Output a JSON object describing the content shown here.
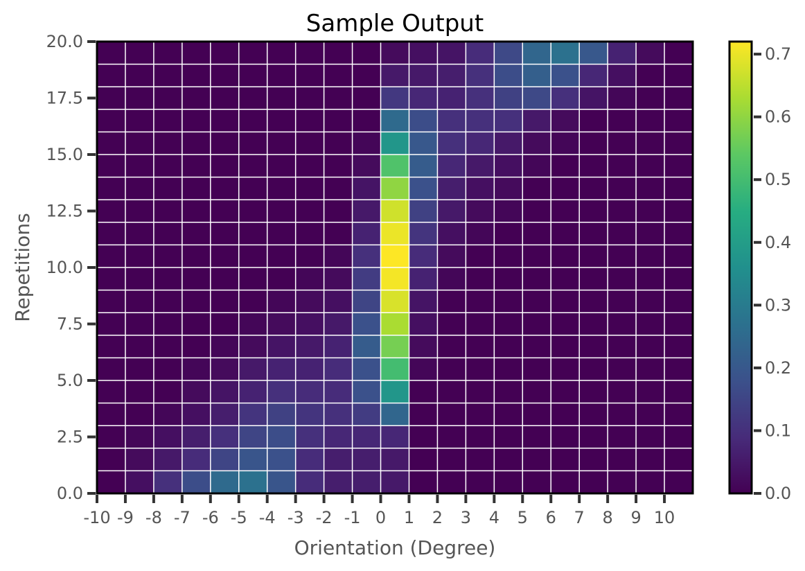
{
  "chart_data": {
    "type": "heatmap",
    "title": "Sample Output",
    "xlabel": "Orientation (Degree)",
    "ylabel": "Repetitions",
    "x_tick_labels": [
      "-10",
      "-9",
      "-8",
      "-7",
      "-6",
      "-5",
      "-4",
      "-3",
      "-2",
      "-1",
      "0",
      "1",
      "2",
      "3",
      "4",
      "5",
      "6",
      "7",
      "8",
      "9",
      "10"
    ],
    "y_tick_labels": [
      "0.0",
      "2.5",
      "5.0",
      "7.5",
      "10.0",
      "12.5",
      "15.0",
      "17.5",
      "20.0"
    ],
    "y_tick_values": [
      0,
      2.5,
      5,
      7.5,
      10,
      12.5,
      15,
      17.5,
      20
    ],
    "xlim": [
      -10,
      11
    ],
    "ylim": [
      0,
      20
    ],
    "colormap": "viridis",
    "color_range": [
      0,
      0.72
    ],
    "colorbar_tick_labels": [
      "0.0",
      "0.1",
      "0.2",
      "0.3",
      "0.4",
      "0.5",
      "0.6",
      "0.7"
    ],
    "colorbar_tick_values": [
      0,
      0.1,
      0.2,
      0.3,
      0.4,
      0.5,
      0.6,
      0.7
    ],
    "grid": true,
    "x_cells": [
      -10,
      -9,
      -8,
      -7,
      -6,
      -5,
      -4,
      -3,
      -2,
      -1,
      0,
      1,
      2,
      3,
      4,
      5,
      6,
      7,
      8,
      9,
      10
    ],
    "row_note": "rows ordered bottom (y 0-1) to top (y 19-20)",
    "values": [
      [
        0.0,
        0.03,
        0.1,
        0.17,
        0.25,
        0.27,
        0.19,
        0.09,
        0.06,
        0.06,
        0.05,
        0.0,
        0.0,
        0.0,
        0.0,
        0.0,
        0.0,
        0.0,
        0.0,
        0.0,
        0.0
      ],
      [
        0.0,
        0.02,
        0.05,
        0.09,
        0.15,
        0.19,
        0.18,
        0.09,
        0.06,
        0.06,
        0.05,
        0.0,
        0.0,
        0.0,
        0.0,
        0.0,
        0.0,
        0.0,
        0.0,
        0.0,
        0.0
      ],
      [
        0.0,
        0.01,
        0.03,
        0.06,
        0.1,
        0.15,
        0.17,
        0.1,
        0.08,
        0.08,
        0.08,
        0.0,
        0.0,
        0.0,
        0.0,
        0.0,
        0.0,
        0.0,
        0.0,
        0.0,
        0.0
      ],
      [
        0.0,
        0.0,
        0.01,
        0.03,
        0.06,
        0.11,
        0.14,
        0.11,
        0.1,
        0.13,
        0.24,
        0.0,
        0.0,
        0.0,
        0.0,
        0.0,
        0.0,
        0.0,
        0.0,
        0.0,
        0.0
      ],
      [
        0.0,
        0.0,
        0.0,
        0.02,
        0.04,
        0.07,
        0.1,
        0.09,
        0.09,
        0.18,
        0.38,
        0.0,
        0.0,
        0.0,
        0.0,
        0.0,
        0.0,
        0.0,
        0.0,
        0.0,
        0.0
      ],
      [
        0.0,
        0.0,
        0.0,
        0.01,
        0.02,
        0.05,
        0.07,
        0.07,
        0.09,
        0.18,
        0.5,
        0.01,
        0.0,
        0.0,
        0.0,
        0.0,
        0.0,
        0.0,
        0.0,
        0.0,
        0.0
      ],
      [
        0.0,
        0.0,
        0.0,
        0.0,
        0.01,
        0.02,
        0.04,
        0.05,
        0.07,
        0.21,
        0.57,
        0.02,
        0.0,
        0.0,
        0.0,
        0.0,
        0.0,
        0.0,
        0.0,
        0.0,
        0.0
      ],
      [
        0.0,
        0.0,
        0.0,
        0.0,
        0.0,
        0.01,
        0.02,
        0.03,
        0.05,
        0.18,
        0.63,
        0.03,
        0.0,
        0.0,
        0.0,
        0.0,
        0.0,
        0.0,
        0.0,
        0.0,
        0.0
      ],
      [
        0.0,
        0.0,
        0.0,
        0.0,
        0.0,
        0.0,
        0.01,
        0.02,
        0.03,
        0.15,
        0.68,
        0.04,
        0.0,
        0.0,
        0.0,
        0.0,
        0.0,
        0.0,
        0.0,
        0.0,
        0.0
      ],
      [
        0.0,
        0.0,
        0.0,
        0.0,
        0.0,
        0.0,
        0.0,
        0.01,
        0.02,
        0.13,
        0.71,
        0.07,
        0.01,
        0.0,
        0.0,
        0.0,
        0.0,
        0.0,
        0.0,
        0.0,
        0.0
      ],
      [
        0.0,
        0.0,
        0.0,
        0.0,
        0.0,
        0.0,
        0.0,
        0.0,
        0.01,
        0.1,
        0.72,
        0.09,
        0.02,
        0.0,
        0.0,
        0.0,
        0.0,
        0.0,
        0.0,
        0.0,
        0.0
      ],
      [
        0.0,
        0.0,
        0.0,
        0.0,
        0.0,
        0.0,
        0.0,
        0.0,
        0.0,
        0.07,
        0.7,
        0.11,
        0.03,
        0.01,
        0.0,
        0.0,
        0.0,
        0.0,
        0.0,
        0.0,
        0.0
      ],
      [
        0.0,
        0.0,
        0.0,
        0.0,
        0.0,
        0.0,
        0.0,
        0.0,
        0.0,
        0.05,
        0.67,
        0.14,
        0.05,
        0.02,
        0.01,
        0.0,
        0.0,
        0.0,
        0.0,
        0.0,
        0.0
      ],
      [
        0.0,
        0.0,
        0.0,
        0.0,
        0.0,
        0.0,
        0.0,
        0.0,
        0.0,
        0.04,
        0.6,
        0.18,
        0.06,
        0.03,
        0.02,
        0.0,
        0.0,
        0.0,
        0.0,
        0.0,
        0.0
      ],
      [
        0.0,
        0.0,
        0.0,
        0.0,
        0.0,
        0.0,
        0.0,
        0.0,
        0.0,
        0.02,
        0.52,
        0.21,
        0.08,
        0.05,
        0.03,
        0.01,
        0.0,
        0.0,
        0.0,
        0.0,
        0.0
      ],
      [
        0.0,
        0.0,
        0.0,
        0.0,
        0.0,
        0.0,
        0.0,
        0.0,
        0.0,
        0.01,
        0.38,
        0.2,
        0.1,
        0.08,
        0.05,
        0.02,
        0.01,
        0.0,
        0.0,
        0.0,
        0.0
      ],
      [
        0.0,
        0.0,
        0.0,
        0.0,
        0.0,
        0.0,
        0.0,
        0.0,
        0.0,
        0.0,
        0.25,
        0.17,
        0.1,
        0.1,
        0.1,
        0.05,
        0.02,
        0.0,
        0.0,
        0.0,
        0.0
      ],
      [
        0.0,
        0.0,
        0.0,
        0.0,
        0.0,
        0.0,
        0.0,
        0.0,
        0.0,
        0.0,
        0.12,
        0.08,
        0.07,
        0.1,
        0.14,
        0.16,
        0.1,
        0.04,
        0.01,
        0.0,
        0.0
      ],
      [
        0.0,
        0.0,
        0.0,
        0.0,
        0.0,
        0.0,
        0.0,
        0.0,
        0.0,
        0.0,
        0.05,
        0.05,
        0.06,
        0.1,
        0.17,
        0.22,
        0.18,
        0.08,
        0.03,
        0.0,
        0.0
      ],
      [
        0.0,
        0.0,
        0.0,
        0.0,
        0.0,
        0.0,
        0.0,
        0.0,
        0.0,
        0.0,
        0.02,
        0.03,
        0.04,
        0.09,
        0.16,
        0.24,
        0.27,
        0.2,
        0.07,
        0.02,
        0.0
      ]
    ]
  }
}
